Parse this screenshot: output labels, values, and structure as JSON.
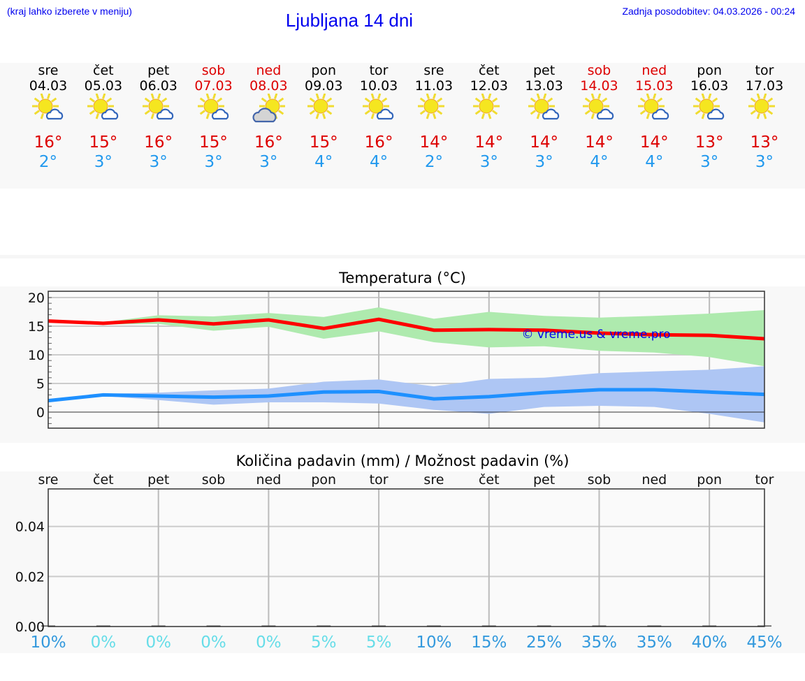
{
  "header": {
    "hint": "(kraj lahko izberete v meniju)",
    "title": "Ljubljana 14 dni",
    "updated": "Zadnja posodobitev: 04.03.2026 - 00:24"
  },
  "colors": {
    "max": "#ff0000",
    "max_band": "#aeeaae",
    "min": "#1e90ff",
    "min_band": "#aec6f4",
    "weekend": "#dd0000",
    "link": "#0000ee",
    "prob_high": "#3399dd",
    "prob_low": "#66dde8"
  },
  "days": [
    {
      "name": "sre",
      "date": "04.03",
      "icon": "partly-cloudy-icon",
      "max": "16°",
      "min": "2°",
      "weekend": false,
      "precip_prob": "10%"
    },
    {
      "name": "čet",
      "date": "05.03",
      "icon": "partly-cloudy-icon",
      "max": "15°",
      "min": "3°",
      "weekend": false,
      "precip_prob": "0%"
    },
    {
      "name": "pet",
      "date": "06.03",
      "icon": "partly-cloudy-icon",
      "max": "16°",
      "min": "3°",
      "weekend": false,
      "precip_prob": "0%"
    },
    {
      "name": "sob",
      "date": "07.03",
      "icon": "partly-cloudy-icon",
      "max": "15°",
      "min": "3°",
      "weekend": true,
      "precip_prob": "0%"
    },
    {
      "name": "ned",
      "date": "08.03",
      "icon": "cloudy-icon",
      "max": "16°",
      "min": "3°",
      "weekend": true,
      "precip_prob": "0%"
    },
    {
      "name": "pon",
      "date": "09.03",
      "icon": "sunny-icon",
      "max": "15°",
      "min": "4°",
      "weekend": false,
      "precip_prob": "5%"
    },
    {
      "name": "tor",
      "date": "10.03",
      "icon": "partly-cloudy-icon",
      "max": "16°",
      "min": "4°",
      "weekend": false,
      "precip_prob": "5%"
    },
    {
      "name": "sre",
      "date": "11.03",
      "icon": "sunny-icon",
      "max": "14°",
      "min": "2°",
      "weekend": false,
      "precip_prob": "10%"
    },
    {
      "name": "čet",
      "date": "12.03",
      "icon": "sunny-icon",
      "max": "14°",
      "min": "3°",
      "weekend": false,
      "precip_prob": "15%"
    },
    {
      "name": "pet",
      "date": "13.03",
      "icon": "partly-cloudy-icon",
      "max": "14°",
      "min": "3°",
      "weekend": false,
      "precip_prob": "25%"
    },
    {
      "name": "sob",
      "date": "14.03",
      "icon": "partly-cloudy-icon",
      "max": "14°",
      "min": "4°",
      "weekend": true,
      "precip_prob": "35%"
    },
    {
      "name": "ned",
      "date": "15.03",
      "icon": "partly-cloudy-icon",
      "max": "14°",
      "min": "4°",
      "weekend": true,
      "precip_prob": "35%"
    },
    {
      "name": "pon",
      "date": "16.03",
      "icon": "partly-cloudy-icon",
      "max": "13°",
      "min": "3°",
      "weekend": false,
      "precip_prob": "40%"
    },
    {
      "name": "tor",
      "date": "17.03",
      "icon": "sunny-icon",
      "max": "13°",
      "min": "3°",
      "weekend": false,
      "precip_prob": "45%"
    }
  ],
  "chart_data": [
    {
      "type": "line",
      "title": "Temperatura (°C)",
      "watermark": "© vreme.us & vreme.pro",
      "x": [
        "04.03",
        "05.03",
        "06.03",
        "07.03",
        "08.03",
        "09.03",
        "10.03",
        "11.03",
        "12.03",
        "13.03",
        "14.03",
        "15.03",
        "16.03",
        "17.03"
      ],
      "ylim": [
        -3,
        21
      ],
      "yticks": [
        "20",
        "15",
        "10",
        "5",
        "0"
      ],
      "grid": true,
      "series": [
        {
          "values": [
            15.9,
            15.5,
            16.1,
            15.4,
            16.1,
            14.6,
            16.2,
            14.3,
            14.4,
            14.3,
            13.8,
            13.5,
            13.4,
            12.8
          ],
          "band_upper": [
            15.9,
            15.7,
            16.9,
            16.7,
            17.3,
            16.6,
            18.3,
            16.3,
            17.5,
            16.8,
            16.5,
            16.8,
            17.2,
            17.8
          ],
          "band_lower": [
            15.9,
            15.3,
            15.4,
            14.2,
            14.9,
            12.8,
            14.1,
            12.2,
            11.3,
            11.5,
            10.7,
            10.4,
            9.6,
            8.0
          ]
        },
        {
          "values": [
            2.0,
            3.0,
            2.8,
            2.6,
            2.8,
            3.5,
            3.6,
            2.3,
            2.7,
            3.4,
            3.9,
            3.9,
            3.5,
            3.1
          ],
          "band_upper": [
            2.0,
            3.2,
            3.4,
            3.8,
            4.1,
            5.3,
            5.7,
            4.5,
            5.8,
            6.0,
            6.8,
            7.1,
            7.4,
            8.0
          ],
          "band_lower": [
            2.0,
            2.8,
            2.1,
            1.3,
            1.7,
            1.7,
            1.5,
            0.4,
            -0.3,
            0.9,
            1.1,
            0.9,
            -0.3,
            -1.8
          ]
        }
      ]
    },
    {
      "type": "bar",
      "title": "Količina padavin (mm) / Možnost padavin (%)",
      "categories": [
        "sre",
        "čet",
        "pet",
        "sob",
        "ned",
        "pon",
        "tor",
        "sre",
        "čet",
        "pet",
        "sob",
        "ned",
        "pon",
        "tor"
      ],
      "values": [
        0,
        0,
        0,
        0,
        0,
        0,
        0,
        0,
        0,
        0,
        0,
        0,
        0,
        0
      ],
      "ylim": [
        0,
        0.055
      ],
      "yticks": [
        "0.04",
        "0.02",
        "0.00"
      ],
      "grid": true
    }
  ]
}
